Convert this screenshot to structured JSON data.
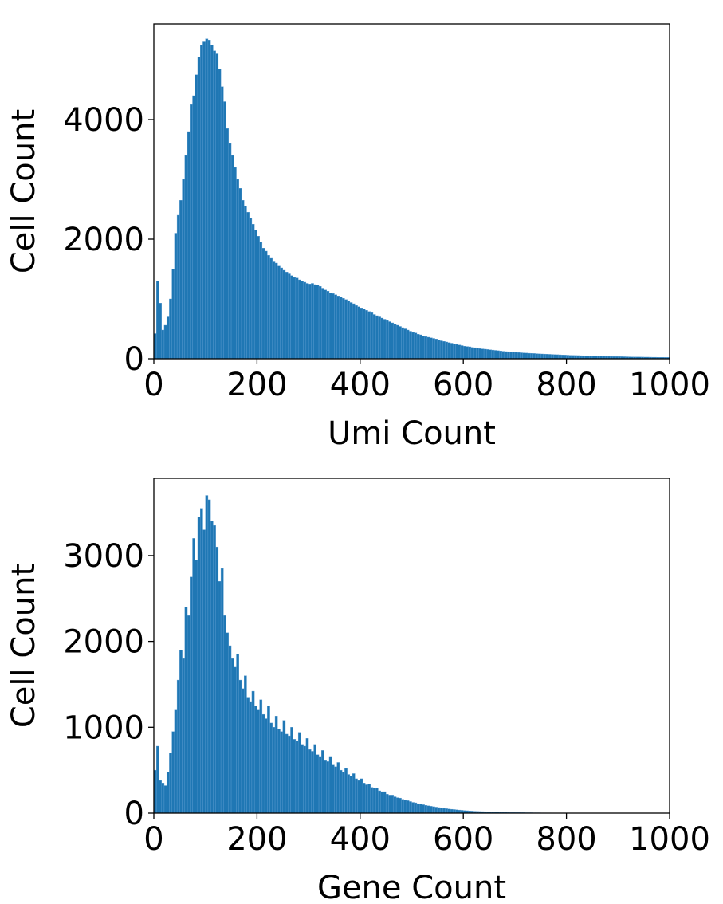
{
  "chart_data": [
    {
      "type": "histogram",
      "xlabel": "Umi Count",
      "ylabel": "Cell Count",
      "color": "#1f77b4",
      "bins": [
        0,
        5,
        10,
        15,
        20,
        25,
        30,
        35,
        40,
        45,
        50,
        55,
        60,
        65,
        70,
        75,
        80,
        85,
        90,
        95,
        100,
        105,
        110,
        115,
        120,
        125,
        130,
        135,
        140,
        145,
        150,
        155,
        160,
        165,
        170,
        175,
        180,
        185,
        190,
        195,
        200,
        205,
        210,
        215,
        220,
        225,
        230,
        235,
        240,
        245,
        250,
        255,
        260,
        265,
        270,
        275,
        280,
        285,
        290,
        295,
        300,
        305,
        310,
        315,
        320,
        325,
        330,
        335,
        340,
        345,
        350,
        355,
        360,
        365,
        370,
        375,
        380,
        385,
        390,
        395,
        400,
        405,
        410,
        415,
        420,
        425,
        430,
        435,
        440,
        445,
        450,
        455,
        460,
        465,
        470,
        475,
        480,
        485,
        490,
        495,
        500,
        505,
        510,
        515,
        520,
        525,
        530,
        535,
        540,
        545,
        550,
        555,
        560,
        565,
        570,
        575,
        580,
        585,
        590,
        595,
        600,
        605,
        610,
        615,
        620,
        625,
        630,
        635,
        640,
        645,
        650,
        655,
        660,
        665,
        670,
        675,
        680,
        685,
        690,
        695,
        700,
        705,
        710,
        715,
        720,
        725,
        730,
        735,
        740,
        745,
        750,
        755,
        760,
        765,
        770,
        775,
        780,
        785,
        790,
        795,
        800,
        805,
        810,
        815,
        820,
        825,
        830,
        835,
        840,
        845,
        850,
        855,
        860,
        865,
        870,
        875,
        880,
        885,
        890,
        895,
        900,
        905,
        910,
        915,
        920,
        925,
        930,
        935,
        940,
        945,
        950,
        955,
        960,
        965,
        970,
        975,
        980,
        985,
        990,
        995,
        1000
      ],
      "values": [
        420,
        1300,
        930,
        480,
        560,
        700,
        1000,
        1500,
        2100,
        2400,
        2650,
        3000,
        3400,
        3800,
        4250,
        4400,
        4750,
        5050,
        5250,
        5300,
        5350,
        5330,
        5250,
        5150,
        5100,
        4850,
        4550,
        4300,
        3850,
        3600,
        3400,
        3200,
        3000,
        2850,
        2650,
        2550,
        2450,
        2350,
        2250,
        2150,
        2050,
        1950,
        1850,
        1800,
        1730,
        1680,
        1620,
        1600,
        1550,
        1520,
        1480,
        1450,
        1420,
        1390,
        1360,
        1350,
        1320,
        1300,
        1280,
        1260,
        1250,
        1260,
        1240,
        1230,
        1210,
        1180,
        1150,
        1130,
        1100,
        1090,
        1070,
        1050,
        1030,
        1010,
        990,
        970,
        940,
        920,
        890,
        870,
        850,
        830,
        810,
        790,
        770,
        740,
        720,
        700,
        680,
        660,
        640,
        620,
        600,
        580,
        560,
        540,
        520,
        500,
        480,
        460,
        440,
        430,
        410,
        400,
        380,
        370,
        360,
        350,
        340,
        330,
        310,
        300,
        290,
        280,
        270,
        260,
        250,
        240,
        230,
        220,
        210,
        205,
        200,
        190,
        185,
        180,
        170,
        165,
        160,
        155,
        150,
        145,
        140,
        135,
        130,
        125,
        120,
        118,
        115,
        110,
        108,
        105,
        100,
        98,
        95,
        92,
        90,
        88,
        85,
        82,
        80,
        78,
        76,
        74,
        72,
        70,
        68,
        66,
        64,
        62,
        60,
        58,
        57,
        55,
        54,
        52,
        51,
        50,
        48,
        47,
        46,
        45,
        44,
        43,
        42,
        41,
        40,
        39,
        38,
        37,
        36,
        35,
        34,
        33,
        32,
        31,
        30,
        30,
        29,
        28,
        27,
        27,
        26,
        25,
        25,
        24,
        23,
        23,
        22,
        22
      ],
      "xlim": [
        0,
        1000
      ],
      "xticks": [
        0,
        200,
        400,
        600,
        800,
        1000
      ],
      "ylim": [
        0,
        5600
      ],
      "yticks": [
        0,
        2000,
        4000
      ]
    },
    {
      "type": "histogram",
      "xlabel": "Gene Count",
      "ylabel": "Cell Count",
      "color": "#1f77b4",
      "bins": [
        0,
        5,
        10,
        15,
        20,
        25,
        30,
        35,
        40,
        45,
        50,
        55,
        60,
        65,
        70,
        75,
        80,
        85,
        90,
        95,
        100,
        105,
        110,
        115,
        120,
        125,
        130,
        135,
        140,
        145,
        150,
        155,
        160,
        165,
        170,
        175,
        180,
        185,
        190,
        195,
        200,
        205,
        210,
        215,
        220,
        225,
        230,
        235,
        240,
        245,
        250,
        255,
        260,
        265,
        270,
        275,
        280,
        285,
        290,
        295,
        300,
        305,
        310,
        315,
        320,
        325,
        330,
        335,
        340,
        345,
        350,
        355,
        360,
        365,
        370,
        375,
        380,
        385,
        390,
        395,
        400,
        405,
        410,
        415,
        420,
        425,
        430,
        435,
        440,
        445,
        450,
        455,
        460,
        465,
        470,
        475,
        480,
        485,
        490,
        495,
        500,
        505,
        510,
        515,
        520,
        525,
        530,
        535,
        540,
        545,
        550,
        555,
        560,
        565,
        570,
        575,
        580,
        585,
        590,
        595,
        600,
        605,
        610,
        615,
        620,
        625,
        630,
        635,
        640,
        645,
        650,
        655,
        660,
        665,
        670,
        675,
        680,
        685,
        690,
        695,
        700,
        705,
        710,
        715,
        720,
        725,
        730,
        735,
        740,
        745,
        750,
        755,
        760,
        765,
        770,
        775,
        780,
        785,
        790,
        795,
        800,
        805,
        810,
        815,
        820,
        825,
        830,
        835,
        840,
        845,
        850,
        855,
        860,
        865,
        870,
        875,
        880,
        885,
        890,
        895,
        900,
        905,
        910,
        915,
        920,
        925,
        930,
        935,
        940,
        945,
        950,
        955,
        960,
        965,
        970,
        975,
        980,
        985,
        990,
        995,
        1000
      ],
      "values": [
        500,
        780,
        380,
        350,
        320,
        480,
        700,
        950,
        1200,
        1550,
        1900,
        1800,
        2400,
        2300,
        2750,
        3200,
        2950,
        3450,
        3550,
        3300,
        3700,
        3650,
        3400,
        3350,
        3100,
        2700,
        2850,
        2300,
        2100,
        1950,
        1800,
        1700,
        1850,
        1550,
        1450,
        1600,
        1350,
        1300,
        1420,
        1250,
        1200,
        1320,
        1150,
        1100,
        1250,
        1050,
        1000,
        1130,
        980,
        950,
        1080,
        920,
        900,
        1000,
        860,
        840,
        940,
        800,
        780,
        870,
        740,
        720,
        800,
        680,
        660,
        730,
        620,
        600,
        660,
        560,
        540,
        590,
        500,
        480,
        520,
        450,
        430,
        460,
        400,
        380,
        400,
        350,
        330,
        340,
        300,
        290,
        290,
        260,
        250,
        250,
        220,
        210,
        210,
        190,
        180,
        175,
        160,
        150,
        145,
        135,
        125,
        120,
        110,
        105,
        98,
        90,
        85,
        80,
        75,
        70,
        65,
        60,
        56,
        52,
        48,
        45,
        42,
        39,
        36,
        33,
        30,
        28,
        26,
        24,
        22,
        20,
        19,
        18,
        17,
        16,
        15,
        14,
        13,
        12,
        11,
        10,
        10,
        9,
        8,
        8,
        7,
        7,
        6,
        6,
        5,
        5,
        5,
        4,
        4,
        4,
        3,
        3,
        3,
        3,
        2,
        2,
        2,
        2,
        2,
        2,
        1,
        1,
        1,
        1,
        1,
        1,
        1,
        1,
        1,
        1,
        1,
        1,
        1,
        1,
        1,
        1,
        1,
        1,
        1,
        1,
        0,
        0,
        0,
        0,
        0,
        0,
        0,
        0,
        0,
        0,
        0,
        0,
        0,
        0,
        0,
        0,
        0,
        0,
        0,
        0
      ],
      "xlim": [
        0,
        1000
      ],
      "xticks": [
        0,
        200,
        400,
        600,
        800,
        1000
      ],
      "ylim": [
        0,
        3900
      ],
      "yticks": [
        0,
        1000,
        2000,
        3000
      ]
    }
  ]
}
